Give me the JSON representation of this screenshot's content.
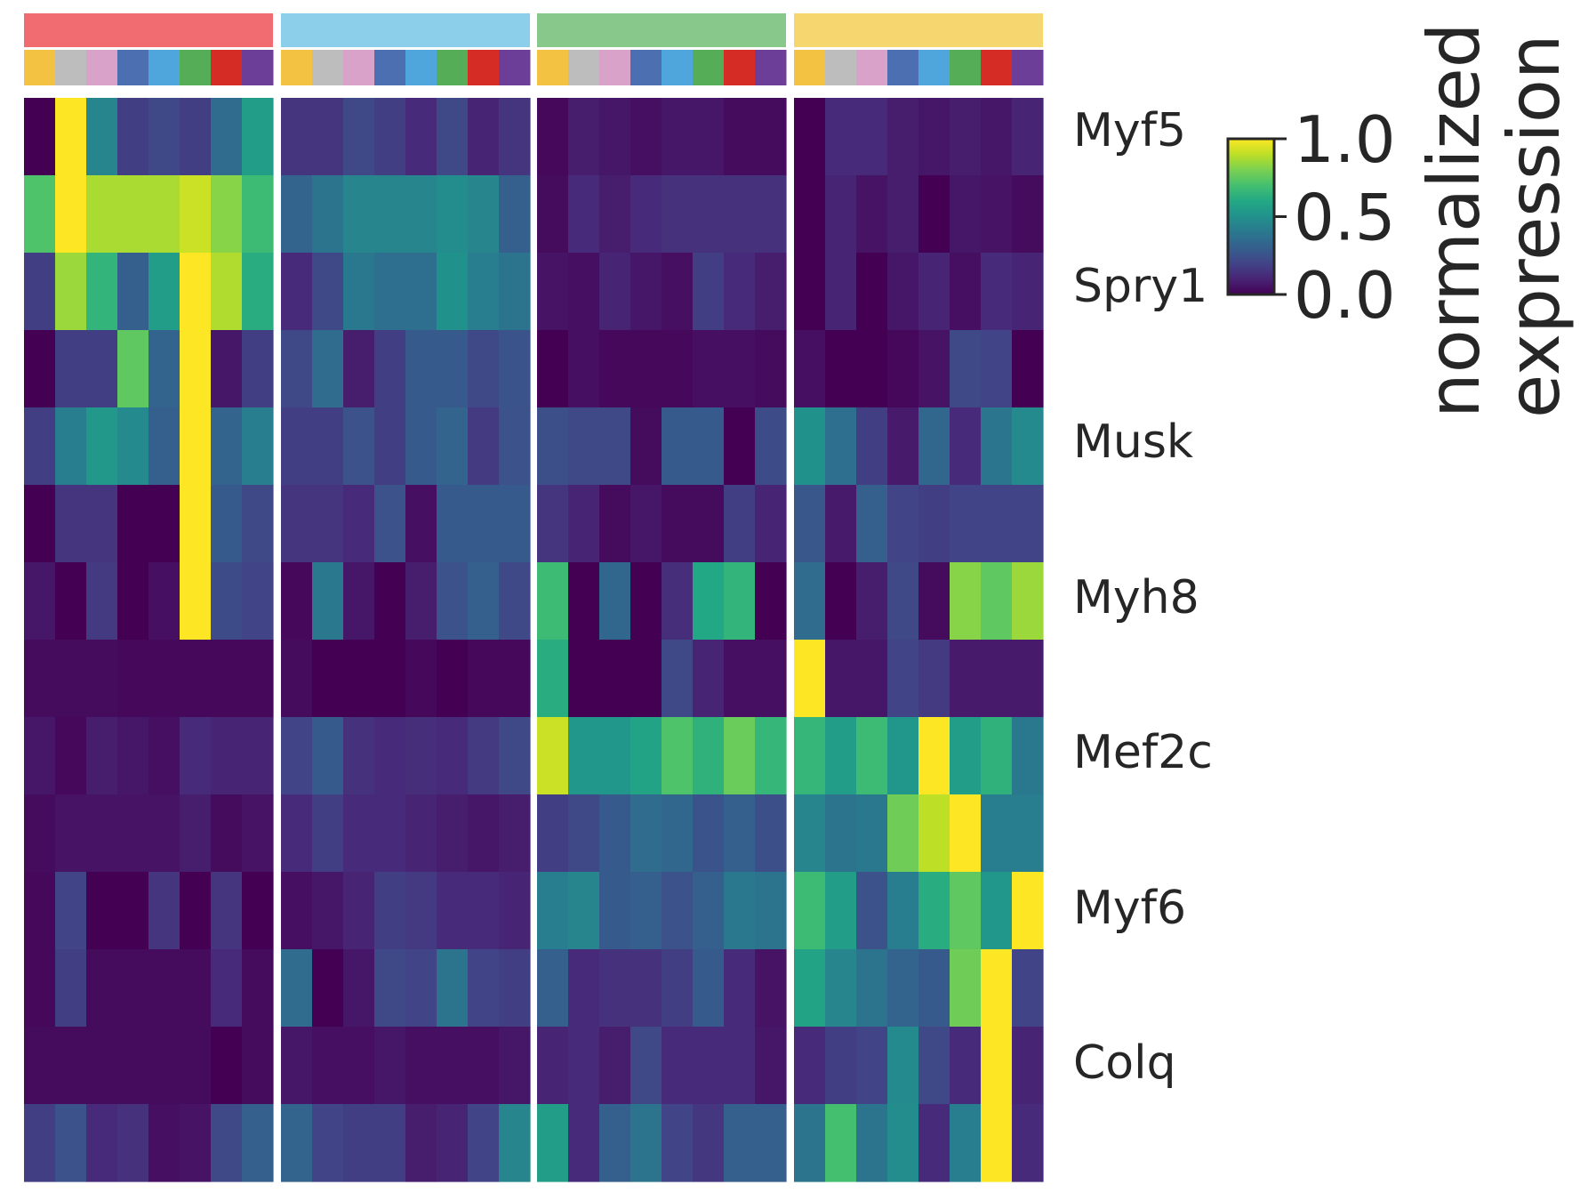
{
  "chart_data": {
    "type": "heatmap",
    "rows": [
      "Myf5",
      "Spry1",
      "Musk",
      "Myh8",
      "Mef2c",
      "Myf6",
      "Colq"
    ],
    "row_label_note": "",
    "n_cell_rows": 14,
    "groups": [
      {
        "color": "#f06c70"
      },
      {
        "color": "#8bcfeb"
      },
      {
        "color": "#88c98b"
      },
      {
        "color": "#f6d66f"
      }
    ],
    "subgroup_colors": [
      "#f4c242",
      "#bdbdbd",
      "#d9a2c8",
      "#4b6fb0",
      "#4fa6dd",
      "#55ad58",
      "#d62c26",
      "#6d3e97"
    ],
    "colorbar": {
      "label": "normalized\nexpression",
      "title_lines": [
        "normalized",
        "expression"
      ],
      "ticks": [
        "1.0",
        "0.5",
        "0.0"
      ],
      "range": [
        0,
        1
      ],
      "colormap": "viridis"
    },
    "values": [
      [
        0.0,
        1.0,
        0.45,
        0.18,
        0.22,
        0.18,
        0.35,
        0.55,
        0.15,
        0.15,
        0.22,
        0.18,
        0.12,
        0.22,
        0.1,
        0.15,
        0.02,
        0.08,
        0.06,
        0.04,
        0.06,
        0.06,
        0.03,
        0.03,
        0.0,
        0.12,
        0.12,
        0.08,
        0.06,
        0.08,
        0.06,
        0.1
      ],
      [
        0.72,
        1.0,
        0.87,
        0.87,
        0.87,
        0.92,
        0.82,
        0.68,
        0.32,
        0.38,
        0.45,
        0.45,
        0.45,
        0.48,
        0.45,
        0.3,
        0.03,
        0.12,
        0.08,
        0.12,
        0.14,
        0.14,
        0.14,
        0.14,
        0.0,
        0.1,
        0.05,
        0.08,
        0.0,
        0.06,
        0.05,
        0.03
      ],
      [
        0.18,
        0.85,
        0.65,
        0.3,
        0.55,
        1.0,
        0.88,
        0.62,
        0.12,
        0.22,
        0.4,
        0.36,
        0.36,
        0.5,
        0.42,
        0.38,
        0.05,
        0.04,
        0.1,
        0.06,
        0.04,
        0.18,
        0.12,
        0.08,
        0.0,
        0.1,
        0.0,
        0.06,
        0.1,
        0.04,
        0.12,
        0.1
      ],
      [
        0.0,
        0.18,
        0.18,
        0.75,
        0.32,
        1.0,
        0.06,
        0.18,
        0.22,
        0.35,
        0.08,
        0.18,
        0.28,
        0.28,
        0.22,
        0.26,
        0.0,
        0.04,
        0.02,
        0.02,
        0.02,
        0.04,
        0.04,
        0.03,
        0.04,
        0.0,
        0.0,
        0.02,
        0.05,
        0.22,
        0.2,
        0.0
      ],
      [
        0.18,
        0.42,
        0.53,
        0.47,
        0.3,
        1.0,
        0.32,
        0.42,
        0.18,
        0.18,
        0.25,
        0.18,
        0.28,
        0.32,
        0.17,
        0.25,
        0.24,
        0.22,
        0.22,
        0.03,
        0.28,
        0.28,
        0.0,
        0.23,
        0.5,
        0.36,
        0.18,
        0.07,
        0.33,
        0.12,
        0.39,
        0.47
      ],
      [
        0.0,
        0.15,
        0.15,
        0.0,
        0.0,
        1.0,
        0.28,
        0.22,
        0.15,
        0.15,
        0.12,
        0.25,
        0.04,
        0.28,
        0.28,
        0.28,
        0.15,
        0.1,
        0.03,
        0.06,
        0.03,
        0.03,
        0.18,
        0.1,
        0.27,
        0.07,
        0.3,
        0.2,
        0.18,
        0.2,
        0.2,
        0.2
      ],
      [
        0.06,
        0.0,
        0.17,
        0.0,
        0.04,
        1.0,
        0.23,
        0.2,
        0.02,
        0.4,
        0.06,
        0.0,
        0.08,
        0.25,
        0.3,
        0.22,
        0.68,
        0.0,
        0.33,
        0.0,
        0.13,
        0.6,
        0.65,
        0.0,
        0.35,
        0.0,
        0.08,
        0.22,
        0.03,
        0.82,
        0.75,
        0.85
      ],
      [
        0.03,
        0.03,
        0.03,
        0.02,
        0.02,
        0.02,
        0.02,
        0.02,
        0.03,
        0.0,
        0.0,
        0.0,
        0.02,
        0.0,
        0.02,
        0.02,
        0.62,
        0.0,
        0.0,
        0.0,
        0.22,
        0.1,
        0.04,
        0.04,
        1.0,
        0.06,
        0.06,
        0.2,
        0.17,
        0.07,
        0.07,
        0.07
      ],
      [
        0.06,
        0.02,
        0.08,
        0.06,
        0.04,
        0.12,
        0.1,
        0.1,
        0.2,
        0.28,
        0.14,
        0.12,
        0.13,
        0.12,
        0.17,
        0.22,
        0.92,
        0.52,
        0.52,
        0.58,
        0.72,
        0.64,
        0.77,
        0.66,
        0.66,
        0.55,
        0.68,
        0.52,
        1.0,
        0.55,
        0.64,
        0.4
      ],
      [
        0.03,
        0.05,
        0.05,
        0.05,
        0.05,
        0.08,
        0.03,
        0.05,
        0.12,
        0.18,
        0.12,
        0.12,
        0.1,
        0.08,
        0.06,
        0.08,
        0.18,
        0.22,
        0.28,
        0.35,
        0.33,
        0.26,
        0.3,
        0.24,
        0.45,
        0.38,
        0.4,
        0.78,
        0.9,
        1.0,
        0.42,
        0.42
      ],
      [
        0.02,
        0.2,
        0.0,
        0.0,
        0.15,
        0.0,
        0.15,
        0.0,
        0.04,
        0.06,
        0.1,
        0.18,
        0.17,
        0.12,
        0.12,
        0.1,
        0.42,
        0.45,
        0.28,
        0.3,
        0.25,
        0.3,
        0.4,
        0.38,
        0.68,
        0.55,
        0.25,
        0.42,
        0.62,
        0.75,
        0.52,
        1.0
      ],
      [
        0.02,
        0.18,
        0.03,
        0.03,
        0.03,
        0.03,
        0.12,
        0.03,
        0.35,
        0.0,
        0.06,
        0.22,
        0.2,
        0.38,
        0.2,
        0.18,
        0.3,
        0.12,
        0.14,
        0.14,
        0.18,
        0.28,
        0.12,
        0.05,
        0.58,
        0.45,
        0.38,
        0.32,
        0.28,
        0.78,
        1.0,
        0.2
      ],
      [
        0.03,
        0.03,
        0.03,
        0.03,
        0.03,
        0.03,
        0.0,
        0.03,
        0.06,
        0.04,
        0.04,
        0.06,
        0.04,
        0.04,
        0.04,
        0.06,
        0.1,
        0.12,
        0.08,
        0.22,
        0.12,
        0.12,
        0.12,
        0.06,
        0.12,
        0.18,
        0.2,
        0.47,
        0.22,
        0.12,
        1.0,
        0.1
      ],
      [
        0.18,
        0.25,
        0.12,
        0.14,
        0.04,
        0.05,
        0.22,
        0.3,
        0.32,
        0.2,
        0.18,
        0.18,
        0.08,
        0.1,
        0.2,
        0.45,
        0.55,
        0.12,
        0.3,
        0.38,
        0.2,
        0.16,
        0.3,
        0.3,
        0.38,
        0.7,
        0.38,
        0.48,
        0.12,
        0.42,
        1.0,
        0.12
      ]
    ]
  }
}
